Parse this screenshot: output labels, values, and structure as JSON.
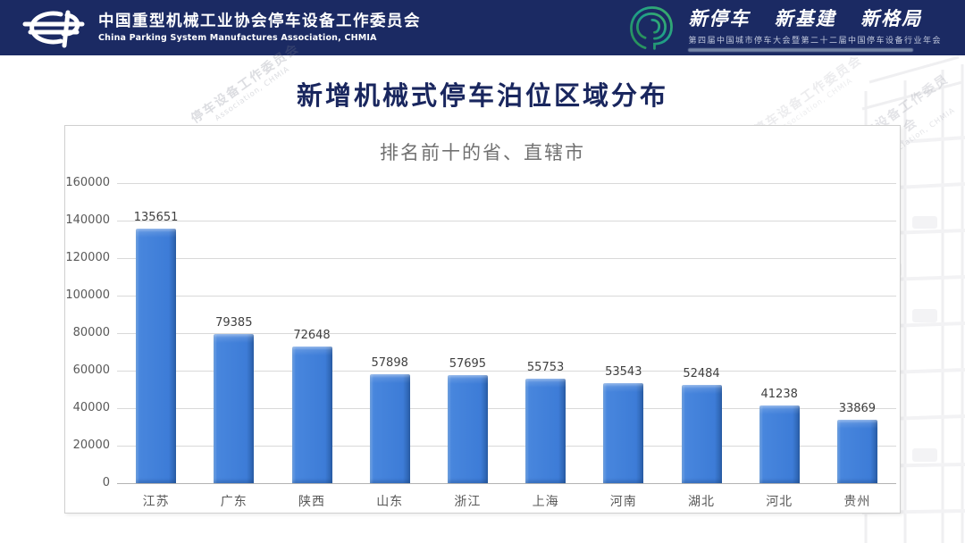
{
  "header": {
    "org_name_cn": "中国重型机械工业协会停车设备工作委员会",
    "org_name_en": "China Parking System Manufactures Association, CHMIA",
    "event": {
      "slogan": [
        "新停车",
        "新基建",
        "新格局"
      ],
      "subtitle": "第四届中国城市停车大会暨第二十二届中国停车设备行业年会"
    }
  },
  "page_title": "新增机械式停车泊位区域分布",
  "watermark": {
    "cn": "停车设备工作委员会",
    "en": "Association, CHMIA"
  },
  "chart_data": {
    "type": "bar",
    "title": "排名前十的省、直辖市",
    "categories": [
      "江苏",
      "广东",
      "陕西",
      "山东",
      "浙江",
      "上海",
      "河南",
      "湖北",
      "河北",
      "贵州"
    ],
    "values": [
      135651,
      79385,
      72648,
      57898,
      57695,
      55753,
      53543,
      52484,
      41238,
      33869
    ],
    "ylim": [
      0,
      160000
    ],
    "yticks": [
      0,
      20000,
      40000,
      60000,
      80000,
      100000,
      120000,
      140000,
      160000
    ],
    "grid": true,
    "legend": false,
    "data_labels": true,
    "bar_color": "#3d7cd7",
    "xlabel": "",
    "ylabel": ""
  },
  "colors": {
    "header_bg": "#1b2a63",
    "title_navy": "#19265e",
    "bar_blue": "#3d7cd7",
    "grid_gray": "#d9d9d9",
    "label_gray": "#595959"
  }
}
